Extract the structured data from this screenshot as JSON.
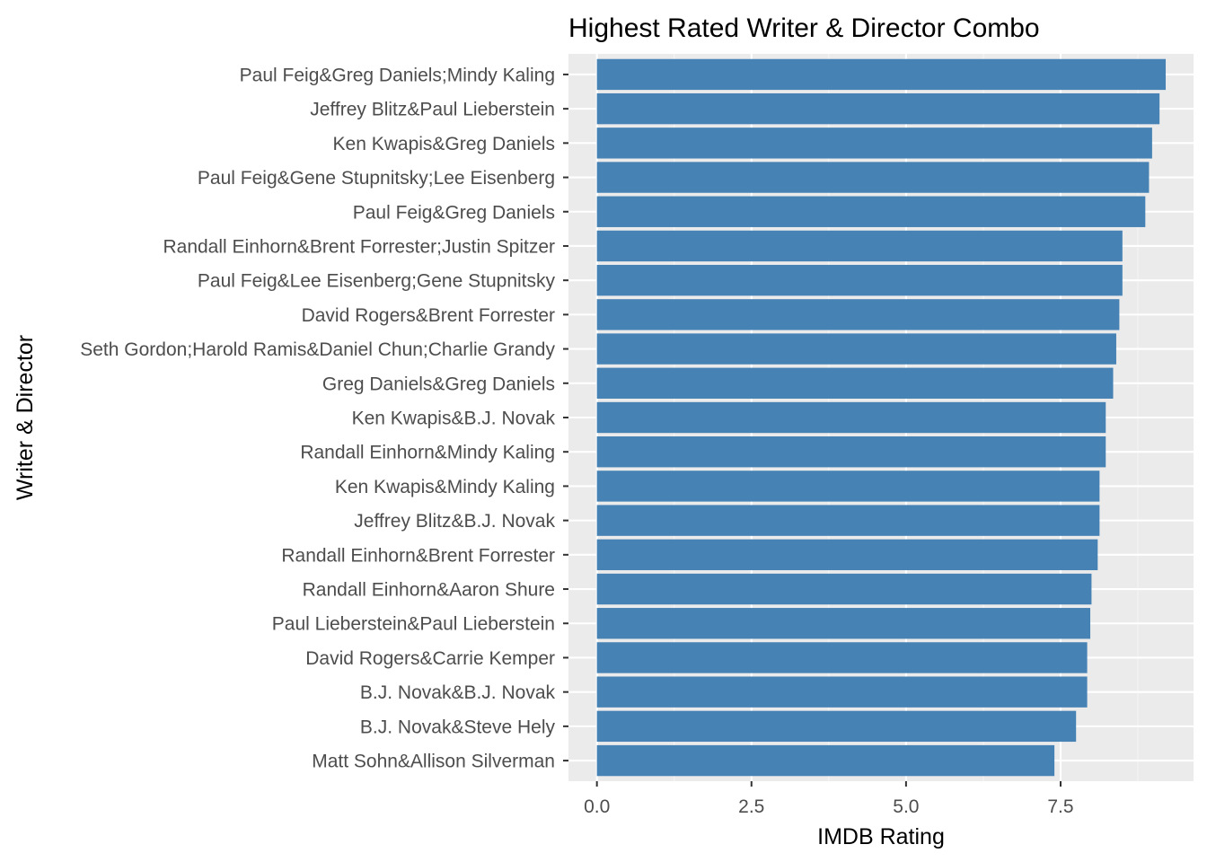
{
  "chart_data": {
    "type": "bar",
    "orientation": "horizontal",
    "title": "Highest Rated Writer & Director Combo",
    "xlabel": "IMDB Rating",
    "ylabel": "Writer & Director",
    "xlim": [
      -0.46,
      9.65
    ],
    "xticks": [
      0.0,
      2.5,
      5.0,
      7.5
    ],
    "xtick_labels": [
      "0.0",
      "2.5",
      "5.0",
      "7.5"
    ],
    "grid": true,
    "categories": [
      "Paul Feig&Greg Daniels;Mindy Kaling",
      "Jeffrey Blitz&Paul Lieberstein",
      "Ken Kwapis&Greg Daniels",
      "Paul Feig&Gene Stupnitsky;Lee Eisenberg",
      "Paul Feig&Greg Daniels",
      "Randall Einhorn&Brent Forrester;Justin Spitzer",
      "Paul Feig&Lee Eisenberg;Gene Stupnitsky",
      "David Rogers&Brent Forrester",
      "Seth Gordon;Harold Ramis&Daniel Chun;Charlie Grandy",
      "Greg Daniels&Greg Daniels",
      "Ken Kwapis&B.J. Novak",
      "Randall Einhorn&Mindy Kaling",
      "Ken Kwapis&Mindy Kaling",
      "Jeffrey Blitz&B.J. Novak",
      "Randall Einhorn&Brent Forrester",
      "Randall Einhorn&Aaron Shure",
      "Paul Lieberstein&Paul Lieberstein",
      "David Rogers&Carrie Kemper",
      "B.J. Novak&B.J. Novak",
      "B.J. Novak&Steve Hely",
      "Matt Sohn&Allison Silverman"
    ],
    "values": [
      9.2,
      9.1,
      8.98,
      8.93,
      8.87,
      8.5,
      8.5,
      8.45,
      8.4,
      8.35,
      8.23,
      8.23,
      8.13,
      8.13,
      8.1,
      8.0,
      7.98,
      7.93,
      7.93,
      7.75,
      7.4
    ],
    "colors": {
      "bar": "#4682b4",
      "panel": "#ebebeb",
      "grid_major": "#ffffff",
      "grid_minor": "#f5f5f5",
      "tick_text": "#4d4d4d",
      "tick_mark": "#333333",
      "title_text": "#000000"
    }
  }
}
